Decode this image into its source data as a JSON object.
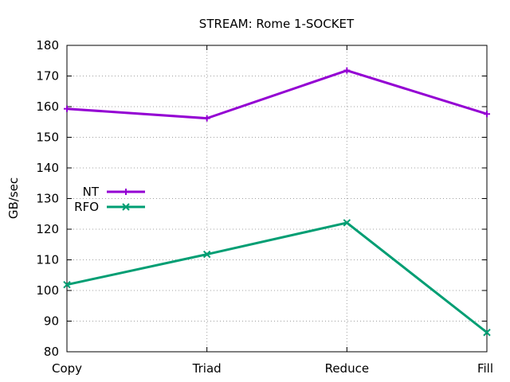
{
  "chart_data": {
    "type": "line",
    "title": "STREAM: Rome 1-SOCKET",
    "xlabel": "",
    "ylabel": "GB/sec",
    "categories": [
      "Copy",
      "Triad",
      "Reduce",
      "Fill"
    ],
    "ylim": [
      80,
      180
    ],
    "yticks": [
      80,
      90,
      100,
      110,
      120,
      130,
      140,
      150,
      160,
      170,
      180
    ],
    "grid": true,
    "legend_position": "left",
    "series": [
      {
        "name": "NT",
        "values": [
          159.3,
          156.2,
          171.8,
          157.6
        ],
        "color": "#9400d3",
        "marker": "plus"
      },
      {
        "name": "RFO",
        "values": [
          101.9,
          111.8,
          122.1,
          86.3
        ],
        "color": "#009e73",
        "marker": "cross"
      }
    ]
  }
}
